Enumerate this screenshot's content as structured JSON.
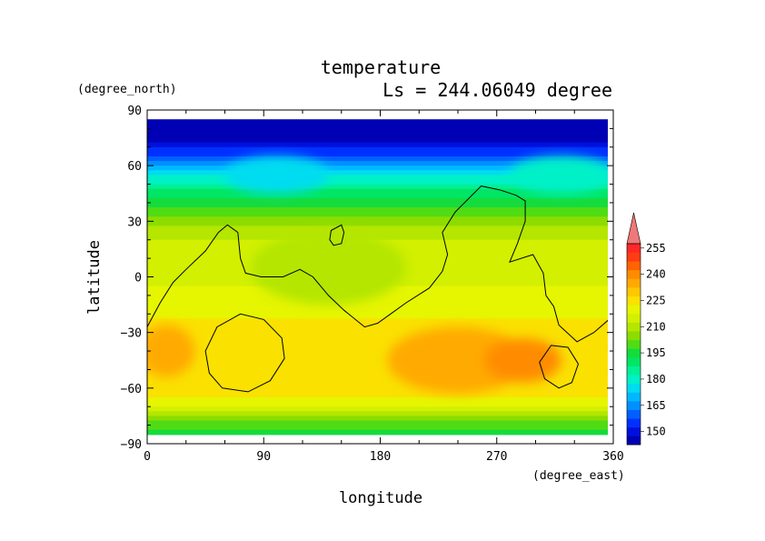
{
  "chart_data": {
    "type": "heatmap",
    "title": "temperature",
    "subtitle": "Ls = 244.06049 degree",
    "xlabel": "longitude",
    "ylabel": "latitude",
    "x_unit": "(degree_east)",
    "y_unit": "(degree_north)",
    "xlim": [
      0,
      360
    ],
    "ylim": [
      -90,
      90
    ],
    "data_extent_lat": [
      -85,
      85
    ],
    "x_ticks": [
      "0",
      "90",
      "180",
      "270",
      "360"
    ],
    "y_ticks": [
      "90",
      "60",
      "30",
      "0",
      "−30",
      "−60",
      "−90"
    ],
    "colorbar": {
      "labels": [
        "255",
        "240",
        "225",
        "210",
        "195",
        "180",
        "165",
        "150"
      ],
      "levels": [
        145,
        150,
        155,
        160,
        165,
        170,
        175,
        180,
        185,
        190,
        195,
        200,
        205,
        210,
        215,
        220,
        225,
        230,
        235,
        240,
        245,
        250,
        255,
        260
      ],
      "colors": [
        "#0000b4",
        "#0010dc",
        "#0030ff",
        "#0060ff",
        "#0090ff",
        "#00b8ff",
        "#00dcf0",
        "#00f0c8",
        "#00f096",
        "#00e664",
        "#14dc3c",
        "#50dc14",
        "#8cdc00",
        "#b4e600",
        "#d2f000",
        "#e6f500",
        "#fae100",
        "#ffc800",
        "#ffaa00",
        "#ff8c00",
        "#ff6400",
        "#ff3c14",
        "#ff2828"
      ],
      "extend_color": "#f07878"
    },
    "latitude_profile": [
      {
        "lat": 85,
        "temp": 145
      },
      {
        "lat": 75,
        "temp": 148
      },
      {
        "lat": 65,
        "temp": 160
      },
      {
        "lat": 55,
        "temp": 180
      },
      {
        "lat": 45,
        "temp": 192
      },
      {
        "lat": 35,
        "temp": 202
      },
      {
        "lat": 25,
        "temp": 212
      },
      {
        "lat": 15,
        "temp": 217
      },
      {
        "lat": 5,
        "temp": 218
      },
      {
        "lat": -5,
        "temp": 220
      },
      {
        "lat": -15,
        "temp": 223
      },
      {
        "lat": -25,
        "temp": 226
      },
      {
        "lat": -35,
        "temp": 229
      },
      {
        "lat": -45,
        "temp": 230
      },
      {
        "lat": -55,
        "temp": 229
      },
      {
        "lat": -65,
        "temp": 225
      },
      {
        "lat": -72,
        "temp": 216
      },
      {
        "lat": -78,
        "temp": 205
      },
      {
        "lat": -85,
        "temp": 195
      }
    ],
    "anomalies": [
      {
        "lon": 15,
        "lat": -40,
        "dlon": 22,
        "dlat": 14,
        "dT": 6
      },
      {
        "lon": 160,
        "lat": -45,
        "dlon": 25,
        "dlat": 15,
        "dT": -4
      },
      {
        "lon": 240,
        "lat": -45,
        "dlon": 55,
        "dlat": 18,
        "dT": 7
      },
      {
        "lon": 290,
        "lat": -45,
        "dlon": 30,
        "dlat": 12,
        "dT": 12
      },
      {
        "lon": 140,
        "lat": 5,
        "dlon": 60,
        "dlat": 20,
        "dT": -4
      },
      {
        "lon": 100,
        "lat": 55,
        "dlon": 40,
        "dlat": 10,
        "dT": -5
      },
      {
        "lon": 320,
        "lat": 55,
        "dlon": 40,
        "dlat": 10,
        "dT": 4
      }
    ],
    "contour_lines": [
      {
        "name": "topography-contour",
        "points": [
          [
            0,
            -27
          ],
          [
            10,
            -14
          ],
          [
            20,
            -3
          ],
          [
            30,
            4
          ],
          [
            45,
            14
          ],
          [
            55,
            24
          ],
          [
            62,
            28
          ],
          [
            70,
            24
          ],
          [
            72,
            10
          ],
          [
            76,
            2
          ],
          [
            88,
            0
          ],
          [
            105,
            0
          ],
          [
            118,
            4
          ],
          [
            128,
            0
          ],
          [
            140,
            -10
          ],
          [
            152,
            -18
          ],
          [
            168,
            -27
          ],
          [
            178,
            -25
          ],
          [
            188,
            -20
          ],
          [
            200,
            -14
          ],
          [
            218,
            -6
          ],
          [
            228,
            3
          ],
          [
            232,
            12
          ],
          [
            228,
            24
          ],
          [
            238,
            35
          ],
          [
            258,
            49
          ],
          [
            272,
            47
          ],
          [
            285,
            44
          ],
          [
            292,
            41
          ],
          [
            292,
            30
          ],
          [
            286,
            18
          ],
          [
            280,
            8
          ],
          [
            298,
            12
          ],
          [
            306,
            2
          ],
          [
            308,
            -10
          ],
          [
            314,
            -16
          ],
          [
            318,
            -26
          ],
          [
            332,
            -35
          ],
          [
            345,
            -30
          ],
          [
            360,
            -21
          ]
        ]
      },
      {
        "name": "north-blob-contour",
        "points": [
          [
            142,
            25
          ],
          [
            150,
            28
          ],
          [
            152,
            24
          ],
          [
            150,
            18
          ],
          [
            144,
            17
          ],
          [
            141,
            20
          ]
        ]
      },
      {
        "name": "hellas-contour",
        "points": [
          [
            58,
            -60
          ],
          [
            78,
            -62
          ],
          [
            95,
            -56
          ],
          [
            106,
            -44
          ],
          [
            104,
            -33
          ],
          [
            90,
            -23
          ],
          [
            72,
            -20
          ],
          [
            54,
            -27
          ],
          [
            45,
            -40
          ],
          [
            48,
            -52
          ]
        ]
      },
      {
        "name": "argyre-contour",
        "points": [
          [
            312,
            -37
          ],
          [
            325,
            -38
          ],
          [
            333,
            -47
          ],
          [
            328,
            -57
          ],
          [
            318,
            -60
          ],
          [
            307,
            -55
          ],
          [
            303,
            -46
          ]
        ]
      }
    ]
  }
}
